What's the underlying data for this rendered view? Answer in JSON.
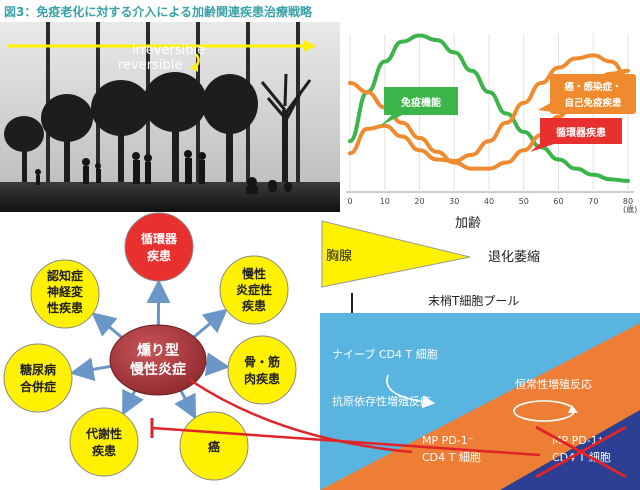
{
  "title": "図3：免疫老化に対する介入による加齢関連疾患治療戦略",
  "photo": {
    "arrow_top_label": "irreversible",
    "arrow_bottom_label": "reversible"
  },
  "chart_data": {
    "type": "line",
    "xlabel": "加齢",
    "x_unit": "(歳)",
    "x_ticks": [
      0,
      10,
      20,
      30,
      40,
      50,
      60,
      70,
      80
    ],
    "xlim": [
      0,
      80
    ],
    "ylim": [
      0,
      1
    ],
    "series": [
      {
        "name": "免疫機能",
        "color": "#3bb54a",
        "x": [
          0,
          5,
          10,
          15,
          20,
          25,
          30,
          35,
          40,
          45,
          50,
          55,
          60,
          65,
          70,
          75,
          80
        ],
        "values": [
          0.3,
          0.62,
          0.82,
          0.95,
          0.99,
          0.96,
          0.88,
          0.76,
          0.62,
          0.48,
          0.36,
          0.26,
          0.18,
          0.12,
          0.08,
          0.05,
          0.04
        ]
      },
      {
        "name": "癌・感染症・自己免疫疾患",
        "color": "#f08a2e",
        "x": [
          0,
          5,
          10,
          15,
          20,
          25,
          30,
          35,
          40,
          45,
          50,
          55,
          60,
          65,
          70,
          75,
          80
        ],
        "values": [
          0.22,
          0.38,
          0.4,
          0.33,
          0.24,
          0.18,
          0.17,
          0.21,
          0.3,
          0.42,
          0.55,
          0.68,
          0.78,
          0.84,
          0.86,
          0.82,
          0.72
        ]
      },
      {
        "name": "循環器疾患",
        "color": "#f08a2e",
        "x": [
          0,
          5,
          10,
          15,
          20,
          25,
          30,
          35,
          40,
          45,
          50,
          55,
          60,
          65,
          70,
          75,
          80
        ],
        "values": [
          0.68,
          0.62,
          0.52,
          0.42,
          0.32,
          0.23,
          0.16,
          0.12,
          0.12,
          0.16,
          0.24,
          0.34,
          0.46,
          0.58,
          0.68,
          0.74,
          0.76
        ]
      }
    ],
    "labels": {
      "immune": "免疫機能",
      "cancer_line1": "癌・感染症・",
      "cancer_line2": "自己免疫疾患",
      "cardio": "循環器疾患"
    }
  },
  "network": {
    "center_line1": "燻り型",
    "center_line2": "慢性炎症",
    "nodes": [
      {
        "l1": "循環器",
        "l2": "疾患",
        "l3": ""
      },
      {
        "l1": "慢性",
        "l2": "炎症性",
        "l3": "疾患"
      },
      {
        "l1": "骨・筋",
        "l2": "肉疾患",
        "l3": ""
      },
      {
        "l1": "癌",
        "l2": "",
        "l3": ""
      },
      {
        "l1": "代謝性",
        "l2": "疾患",
        "l3": ""
      },
      {
        "l1": "糖尿病",
        "l2": "合併症",
        "l3": ""
      },
      {
        "l1": "認知症",
        "l2": "神経変",
        "l3": "性疾患"
      }
    ]
  },
  "thymus": {
    "thymus_label": "胸腺",
    "atrophy_label": "退化萎縮",
    "pool_label": "末梢T細胞プール",
    "naive_label": "ナイーブ CD4 T 細胞",
    "antigen_label": "抗原依存性増殖反応",
    "homeostatic_label": "恒常性増殖反応",
    "mp1_line1": "MP PD-1⁻",
    "mp1_line2": "CD4 T 細胞",
    "mp2_line1": "MP PD-1⁺",
    "mp2_line2": "CD4 T 細胞"
  },
  "colors": {
    "title": "#3aa2a8",
    "yellow": "#fff100",
    "red_node": "#e8312f",
    "center_node": "#a83438",
    "arrow_blue": "#6b96c8",
    "sky": "#5ab4e0",
    "orange": "#ee7d36",
    "navy": "#2c3f93",
    "inhibit_red": "#e0252a"
  }
}
